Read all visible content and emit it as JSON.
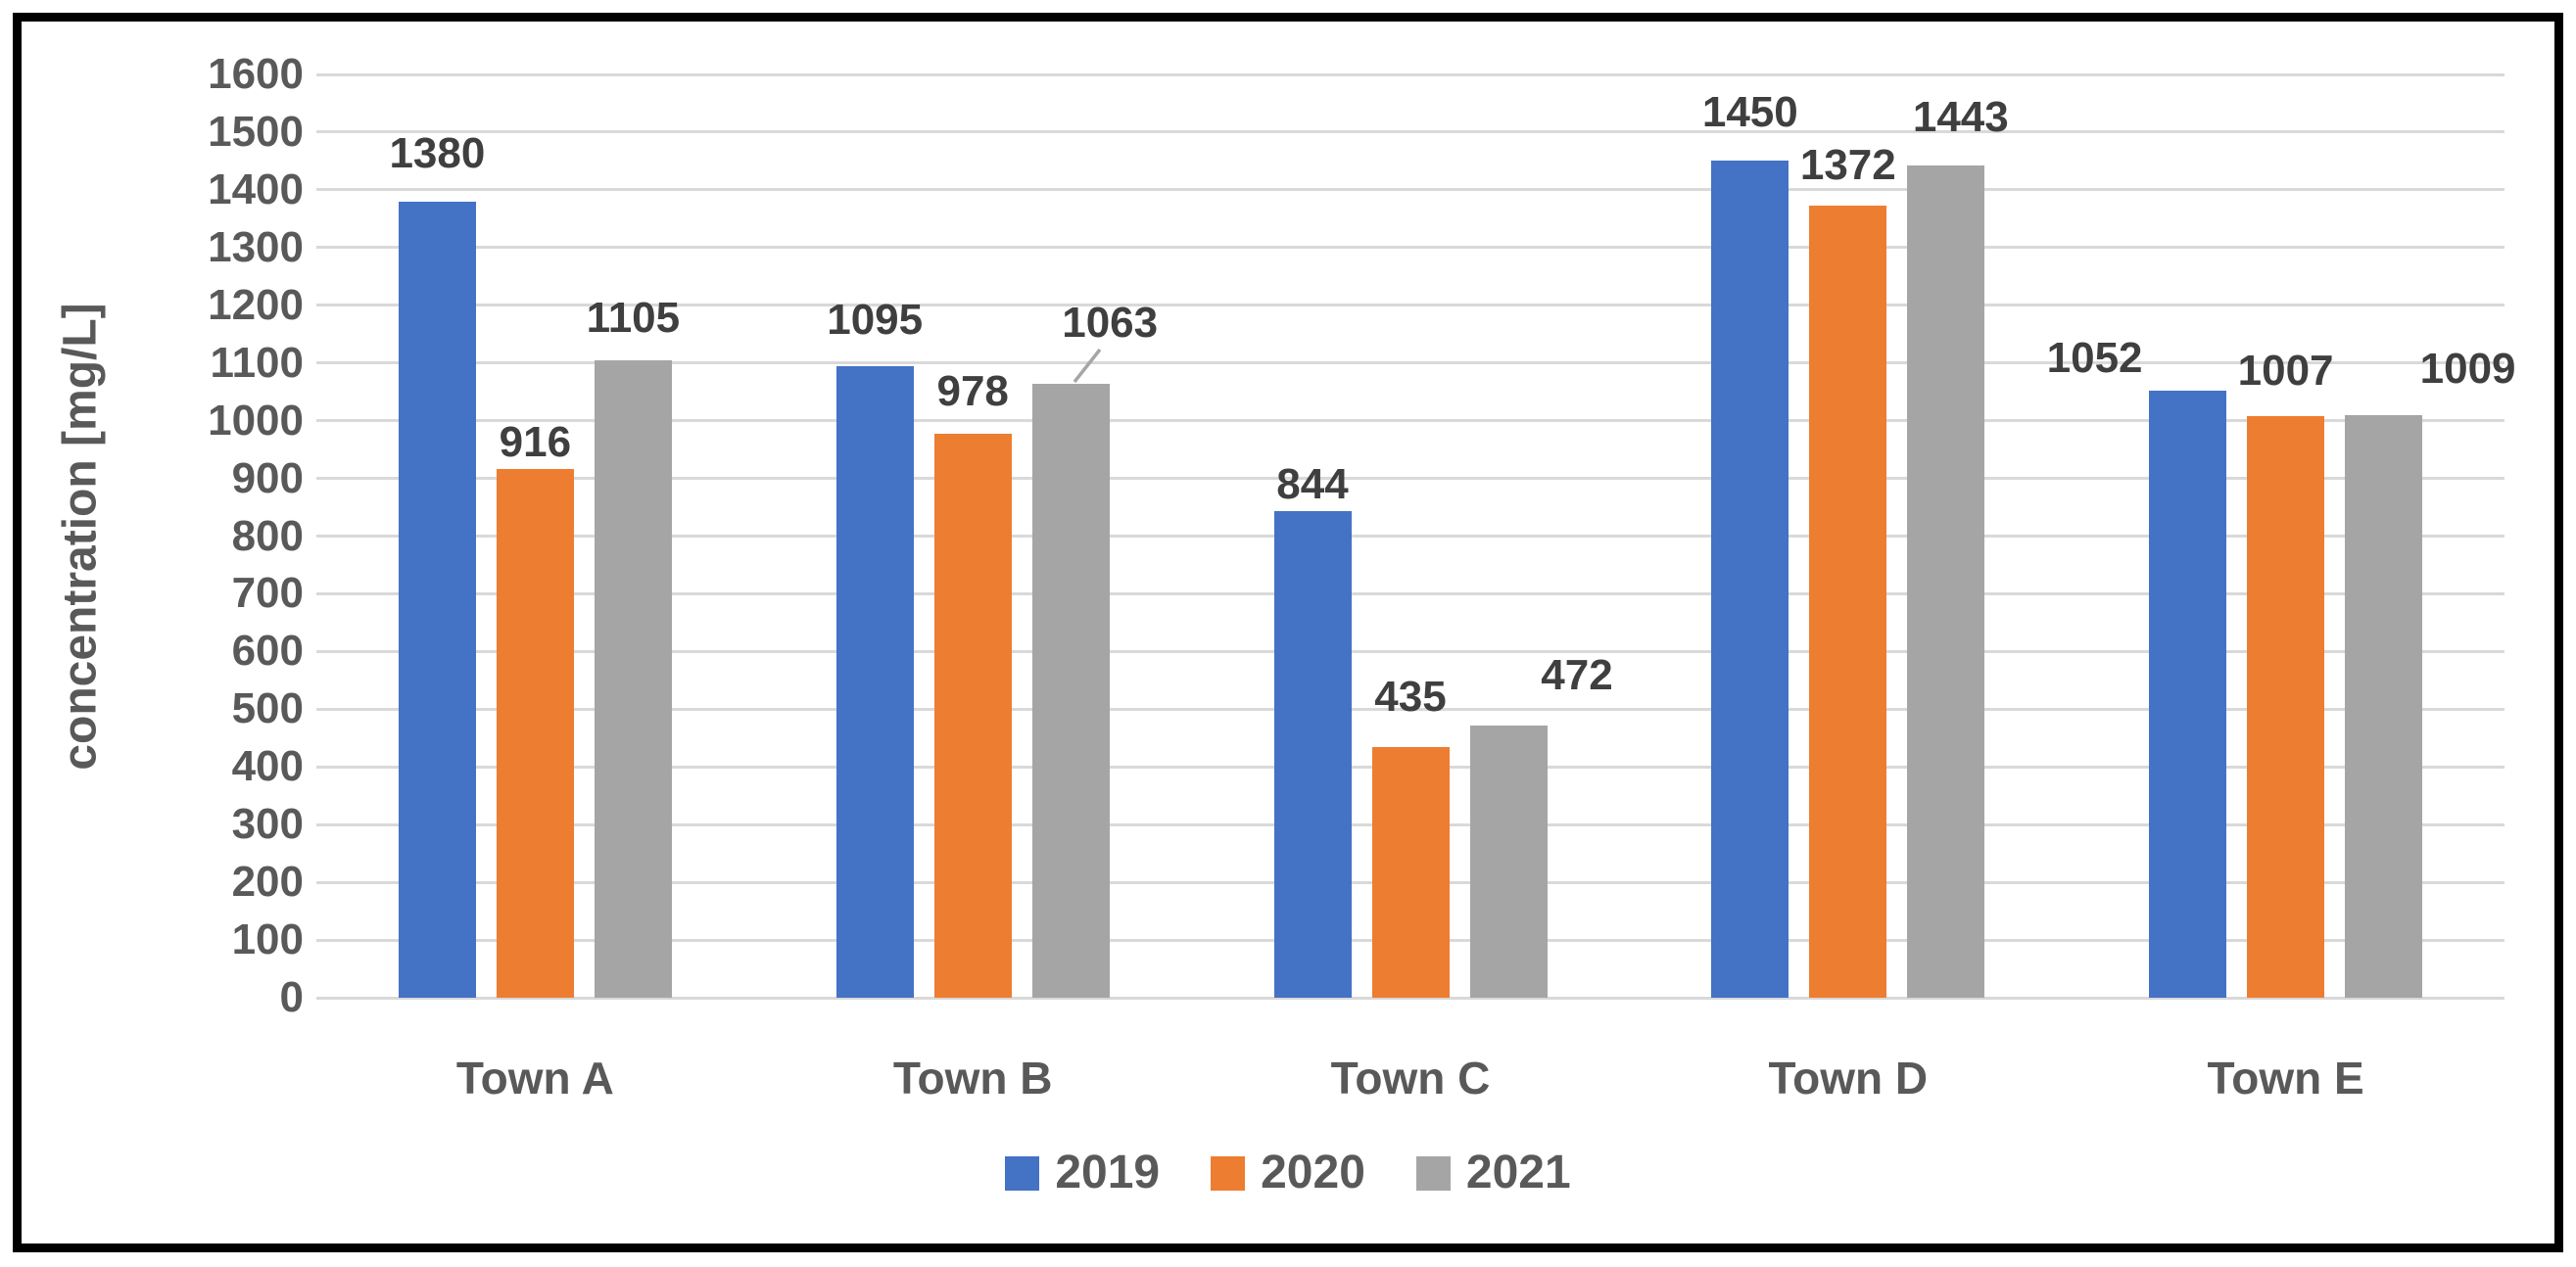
{
  "chart_data": {
    "type": "bar",
    "title": "",
    "categories": [
      "Town A",
      "Town B",
      "Town C",
      "Town D",
      "Town E"
    ],
    "series": [
      {
        "name": "2019",
        "color": "#4472C4",
        "values": [
          1380,
          1095,
          844,
          1450,
          1052
        ]
      },
      {
        "name": "2020",
        "color": "#ED7D31",
        "values": [
          916,
          978,
          435,
          1372,
          1007
        ]
      },
      {
        "name": "2021",
        "color": "#A5A5A5",
        "values": [
          1105,
          1063,
          472,
          1443,
          1009
        ]
      }
    ],
    "xlabel": "",
    "ylabel": "concentration [mg/L]",
    "ylim": [
      0,
      1600
    ],
    "ytick_step": 100,
    "yticks": [
      0,
      100,
      200,
      300,
      400,
      500,
      600,
      700,
      800,
      900,
      1000,
      1100,
      1200,
      1300,
      1400,
      1500,
      1600
    ],
    "grid": true,
    "bar_value_labels": true,
    "legend_position": "bottom",
    "layout_hints": {
      "label_dx": [
        [
          0,
          0,
          0,
          0,
          -95
        ],
        [
          0,
          0,
          0,
          0,
          0
        ],
        [
          0,
          40,
          70,
          15,
          86
        ]
      ],
      "label_gap": [
        [
          36,
          34,
          14,
          36,
          20
        ],
        [
          14,
          30,
          38,
          28,
          34
        ],
        [
          30,
          50,
          38,
          36,
          34
        ]
      ],
      "leader_line": {
        "series": "2021",
        "category": "Town B",
        "x1": 1097,
        "y1": 390,
        "x2": 1123,
        "y2": 357
      }
    },
    "colors": {
      "axis_text": "#595959",
      "data_label": "#3F3F3F",
      "gridline": "#D9D9D9",
      "leader": "#A6A6A6",
      "frame": "#000000",
      "background": "#FFFFFF"
    }
  }
}
